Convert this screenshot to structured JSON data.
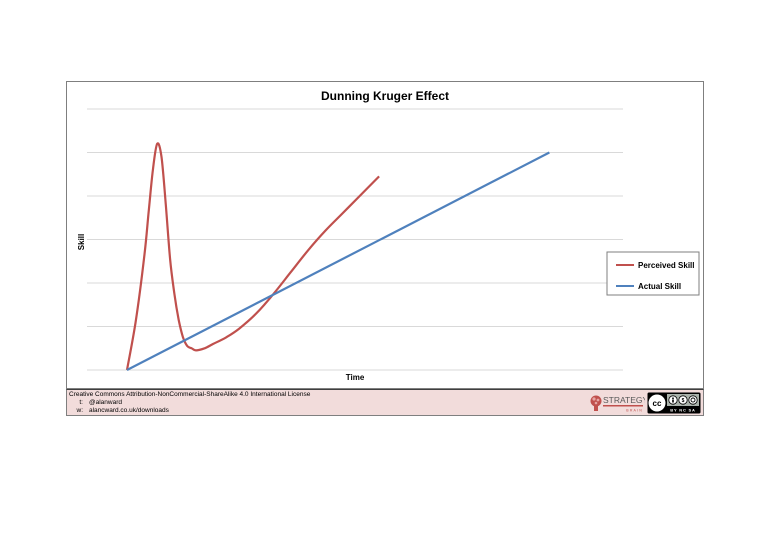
{
  "chart_data": {
    "type": "line",
    "title": "Dunning Kruger Effect",
    "xlabel": "Time",
    "ylabel": "Skill",
    "ylim": [
      0,
      6
    ],
    "grid": true,
    "legend_position": "right",
    "series": [
      {
        "name": "Perceived Skill",
        "color": "#c0504d",
        "points": [
          [
            0.0,
            0.0
          ],
          [
            0.2,
            1.1
          ],
          [
            0.4,
            2.6
          ],
          [
            0.5,
            3.6
          ],
          [
            0.6,
            4.6
          ],
          [
            0.7,
            5.2
          ],
          [
            0.8,
            4.9
          ],
          [
            0.9,
            3.8
          ],
          [
            1.0,
            2.55
          ],
          [
            1.1,
            1.75
          ],
          [
            1.2,
            1.15
          ],
          [
            1.3,
            0.75
          ],
          [
            1.4,
            0.55
          ],
          [
            1.5,
            0.5
          ],
          [
            1.6,
            0.45
          ],
          [
            1.8,
            0.5
          ],
          [
            2.0,
            0.6
          ],
          [
            2.3,
            0.75
          ],
          [
            2.6,
            0.95
          ],
          [
            3.0,
            1.3
          ],
          [
            3.4,
            1.75
          ],
          [
            3.8,
            2.25
          ],
          [
            4.2,
            2.75
          ],
          [
            4.6,
            3.2
          ],
          [
            5.0,
            3.6
          ],
          [
            5.4,
            4.0
          ],
          [
            5.85,
            4.45
          ]
        ]
      },
      {
        "name": "Actual Skill",
        "color": "#4f81bd",
        "points": [
          [
            0,
            0
          ],
          [
            10,
            5.2
          ]
        ]
      }
    ],
    "xlim": [
      0,
      10
    ],
    "x_extent": [
      0,
      5.2
    ]
  },
  "footer": {
    "license": "Creative Commons Attribution-NonCommercial-ShareAlike 4.0 International License",
    "twitter_key": "t:",
    "twitter": "@alanward",
    "web_key": "w:",
    "web": "alancward.co.uk/downloads"
  },
  "logo": {
    "name": "STRATEGY",
    "sub": "BRAIN",
    "icon": "brain-icon",
    "color": "#c0504d"
  },
  "cc_badge": {
    "icon": "creative-commons-by-nc-sa-icon",
    "text": "BY NC SA"
  }
}
